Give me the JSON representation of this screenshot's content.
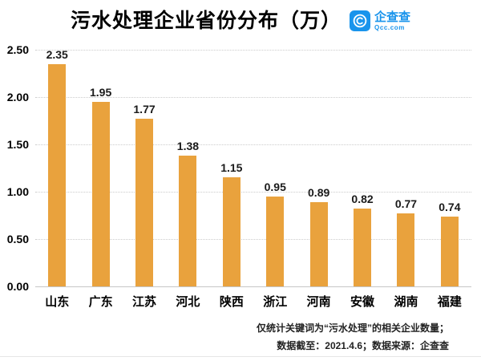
{
  "header": {
    "logo": {
      "name": "企查查",
      "domain": "Qcc.com",
      "color": "#1994EC"
    }
  },
  "chart_data": {
    "type": "bar",
    "title": "污水处理企业省份分布（万）",
    "categories": [
      "山东",
      "广东",
      "江苏",
      "河北",
      "陕西",
      "浙江",
      "河南",
      "安徽",
      "湖南",
      "福建"
    ],
    "values": [
      2.35,
      1.95,
      1.77,
      1.38,
      1.15,
      0.95,
      0.89,
      0.82,
      0.77,
      0.74
    ],
    "xlabel": "",
    "ylabel": "",
    "ylim": [
      0,
      2.5
    ],
    "yticks": [
      {
        "label": "0.00",
        "value": 0
      },
      {
        "label": "0.50",
        "value": 0.5
      },
      {
        "label": "1.00",
        "value": 1
      },
      {
        "label": "1.50",
        "value": 1.5
      },
      {
        "label": "2.00",
        "value": 2
      },
      {
        "label": "2.50",
        "value": 2.5
      }
    ],
    "bar_color": "#E9A23D",
    "grid": true,
    "grid_style": "dotted",
    "legend": false,
    "data_labels": true
  },
  "footer": {
    "line1": "仅统计关键词为“污水处理”的相关企业数量；",
    "line2": "数据截至：2021.4.6；数据来源：企查查"
  }
}
